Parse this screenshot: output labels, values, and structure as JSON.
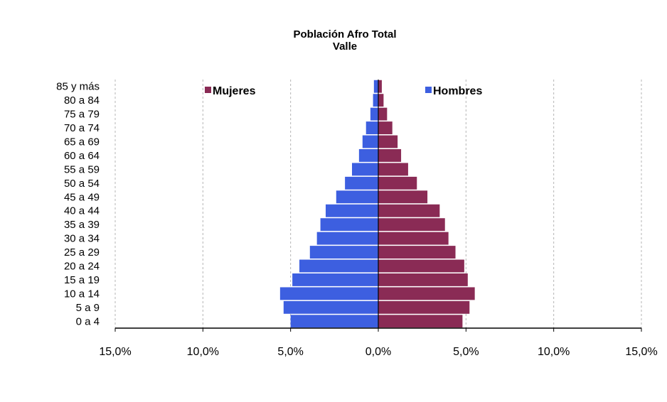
{
  "chart_data": {
    "type": "bar",
    "title": "Población Afro Total",
    "subtitle": "Valle",
    "categories": [
      "0 a 4",
      "5 a 9",
      "10 a 14",
      "15 a 19",
      "20 a 24",
      "25 a 29",
      "30 a 34",
      "35 a 39",
      "40 a 44",
      "45 a 49",
      "50 a 54",
      "55 a 59",
      "60 a 64",
      "65 a 69",
      "70 a 74",
      "75 a 79",
      "80 a 84",
      "85 y más"
    ],
    "series": [
      {
        "name": "Hombres",
        "color": "#3d5fe0",
        "values": [
          5.0,
          5.4,
          5.6,
          4.9,
          4.5,
          3.9,
          3.5,
          3.3,
          3.0,
          2.4,
          1.9,
          1.5,
          1.1,
          0.9,
          0.7,
          0.45,
          0.3,
          0.25
        ]
      },
      {
        "name": "Mujeres",
        "color": "#8a2b55",
        "values": [
          4.8,
          5.2,
          5.5,
          5.1,
          4.9,
          4.4,
          4.0,
          3.8,
          3.5,
          2.8,
          2.2,
          1.7,
          1.3,
          1.1,
          0.8,
          0.5,
          0.3,
          0.2
        ]
      }
    ],
    "xlim": [
      -15,
      15
    ],
    "x_ticks": [
      "15,0%",
      "10,0%",
      "5,0%",
      "0,0%",
      "5,0%",
      "10,0%",
      "15,0%"
    ],
    "grid": "vertical dashed",
    "legend": [
      "Mujeres",
      "Hombres"
    ],
    "legend_placement": "top"
  }
}
